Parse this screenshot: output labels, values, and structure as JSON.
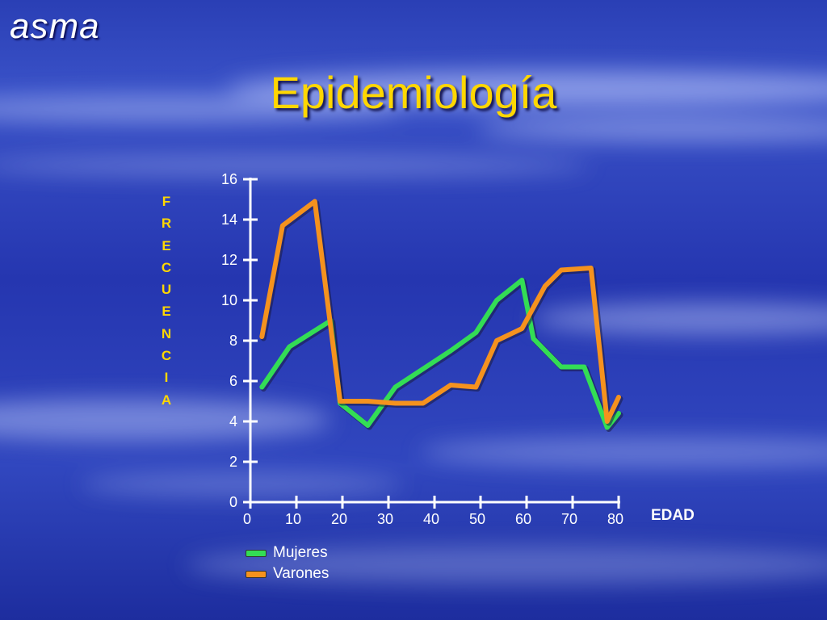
{
  "brand": "asma",
  "title": "Epidemiología",
  "colors": {
    "mujeres": "#33dd55",
    "varones": "#f5921e",
    "title": "#ffd700"
  },
  "chart_data": {
    "type": "line",
    "title": "",
    "ylabel": "FRECUENCIA",
    "xlabel": "EDAD",
    "xlim": [
      0,
      80
    ],
    "ylim": [
      0,
      16
    ],
    "xticks": [
      0,
      10,
      20,
      30,
      40,
      50,
      60,
      70,
      80
    ],
    "yticks": [
      0,
      2,
      4,
      6,
      8,
      10,
      12,
      14,
      16
    ],
    "legend_position": "bottom-left",
    "series": [
      {
        "name": "Mujeres",
        "x": [
          2.5,
          8.5,
          17.5,
          19.5,
          25.5,
          31.5,
          37.5,
          43.5,
          49,
          53.5,
          59,
          61.5,
          67.5,
          72.5,
          77.5,
          80
        ],
        "y": [
          5.7,
          7.7,
          9.0,
          4.9,
          3.8,
          5.7,
          6.6,
          7.5,
          8.4,
          10.0,
          11.0,
          8.1,
          6.7,
          6.7,
          3.7,
          4.4
        ]
      },
      {
        "name": "Varones",
        "x": [
          2.5,
          7,
          14,
          19.5,
          25.5,
          31.5,
          37.5,
          43.5,
          49,
          53.5,
          59,
          64,
          67.5,
          74,
          77.5,
          80
        ],
        "y": [
          8.2,
          13.7,
          14.9,
          5.0,
          5.0,
          4.9,
          4.9,
          5.8,
          5.7,
          8.0,
          8.6,
          10.7,
          11.5,
          11.6,
          4.0,
          5.2
        ]
      }
    ]
  }
}
